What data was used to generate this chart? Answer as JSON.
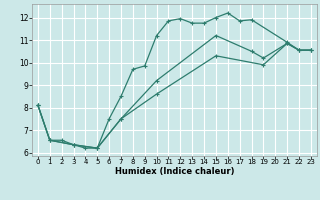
{
  "title": "",
  "xlabel": "Humidex (Indice chaleur)",
  "background_color": "#cce8e8",
  "line_color": "#2e7d6e",
  "grid_color": "#ffffff",
  "xlim": [
    -0.5,
    23.5
  ],
  "ylim": [
    5.85,
    12.6
  ],
  "xticks": [
    0,
    1,
    2,
    3,
    4,
    5,
    6,
    7,
    8,
    9,
    10,
    11,
    12,
    13,
    14,
    15,
    16,
    17,
    18,
    19,
    20,
    21,
    22,
    23
  ],
  "yticks": [
    6,
    7,
    8,
    9,
    10,
    11,
    12
  ],
  "line1_x": [
    0,
    1,
    2,
    3,
    4,
    5,
    6,
    7,
    8,
    9,
    10,
    11,
    12,
    13,
    14,
    15,
    16,
    17,
    18,
    21,
    22,
    23
  ],
  "line1_y": [
    8.1,
    6.55,
    6.55,
    6.35,
    6.2,
    6.2,
    7.5,
    8.5,
    9.7,
    9.85,
    11.2,
    11.85,
    11.95,
    11.75,
    11.75,
    12.0,
    12.2,
    11.85,
    11.9,
    10.9,
    10.55,
    10.55
  ],
  "line2_x": [
    0,
    1,
    3,
    5,
    7,
    10,
    15,
    18,
    19,
    21,
    22,
    23
  ],
  "line2_y": [
    8.1,
    6.55,
    6.35,
    6.2,
    7.5,
    9.2,
    11.2,
    10.5,
    10.2,
    10.85,
    10.55,
    10.55
  ],
  "line3_x": [
    0,
    1,
    3,
    5,
    7,
    10,
    15,
    19,
    21,
    22,
    23
  ],
  "line3_y": [
    8.1,
    6.55,
    6.35,
    6.2,
    7.5,
    8.6,
    10.3,
    9.9,
    10.85,
    10.55,
    10.55
  ]
}
